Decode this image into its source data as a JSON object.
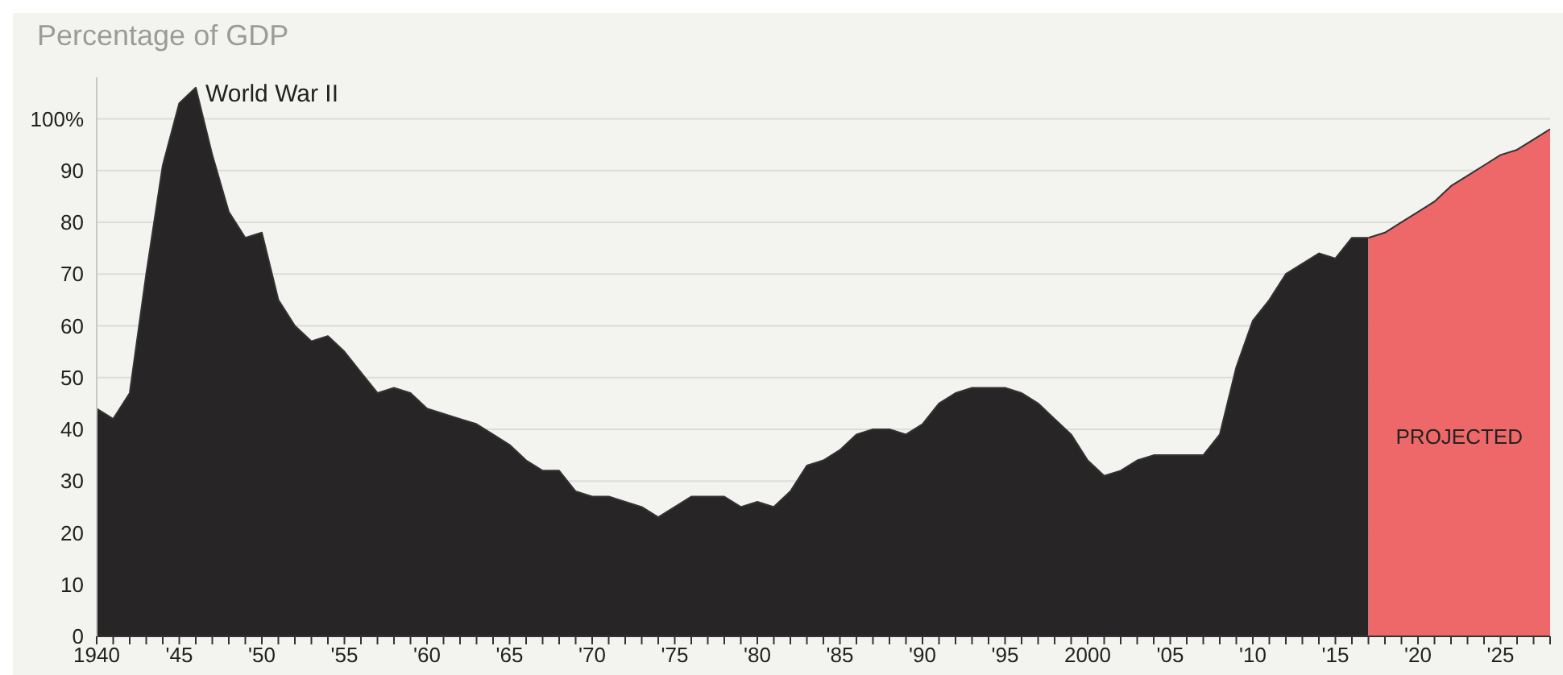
{
  "chart_data": {
    "type": "area",
    "title": "Percentage of GDP",
    "xlim": [
      1940,
      2028
    ],
    "xticks": [
      {
        "value": 1940,
        "label": "1940"
      },
      {
        "value": 1941,
        "label": null
      },
      {
        "value": 1942,
        "label": null
      },
      {
        "value": 1943,
        "label": null
      },
      {
        "value": 1944,
        "label": null
      },
      {
        "value": 1945,
        "label": "'45"
      },
      {
        "value": 1946,
        "label": null
      },
      {
        "value": 1947,
        "label": null
      },
      {
        "value": 1948,
        "label": null
      },
      {
        "value": 1949,
        "label": null
      },
      {
        "value": 1950,
        "label": "'50"
      },
      {
        "value": 1951,
        "label": null
      },
      {
        "value": 1952,
        "label": null
      },
      {
        "value": 1953,
        "label": null
      },
      {
        "value": 1954,
        "label": null
      },
      {
        "value": 1955,
        "label": "'55"
      },
      {
        "value": 1956,
        "label": null
      },
      {
        "value": 1957,
        "label": null
      },
      {
        "value": 1958,
        "label": null
      },
      {
        "value": 1959,
        "label": null
      },
      {
        "value": 1960,
        "label": "'60"
      },
      {
        "value": 1961,
        "label": null
      },
      {
        "value": 1962,
        "label": null
      },
      {
        "value": 1963,
        "label": null
      },
      {
        "value": 1964,
        "label": null
      },
      {
        "value": 1965,
        "label": "'65"
      },
      {
        "value": 1966,
        "label": null
      },
      {
        "value": 1967,
        "label": null
      },
      {
        "value": 1968,
        "label": null
      },
      {
        "value": 1969,
        "label": null
      },
      {
        "value": 1970,
        "label": "'70"
      },
      {
        "value": 1971,
        "label": null
      },
      {
        "value": 1972,
        "label": null
      },
      {
        "value": 1973,
        "label": null
      },
      {
        "value": 1974,
        "label": null
      },
      {
        "value": 1975,
        "label": "'75"
      },
      {
        "value": 1976,
        "label": null
      },
      {
        "value": 1977,
        "label": null
      },
      {
        "value": 1978,
        "label": null
      },
      {
        "value": 1979,
        "label": null
      },
      {
        "value": 1980,
        "label": "'80"
      },
      {
        "value": 1981,
        "label": null
      },
      {
        "value": 1982,
        "label": null
      },
      {
        "value": 1983,
        "label": null
      },
      {
        "value": 1984,
        "label": null
      },
      {
        "value": 1985,
        "label": "'85"
      },
      {
        "value": 1986,
        "label": null
      },
      {
        "value": 1987,
        "label": null
      },
      {
        "value": 1988,
        "label": null
      },
      {
        "value": 1989,
        "label": null
      },
      {
        "value": 1990,
        "label": "'90"
      },
      {
        "value": 1991,
        "label": null
      },
      {
        "value": 1992,
        "label": null
      },
      {
        "value": 1993,
        "label": null
      },
      {
        "value": 1994,
        "label": null
      },
      {
        "value": 1995,
        "label": "'95"
      },
      {
        "value": 1996,
        "label": null
      },
      {
        "value": 1997,
        "label": null
      },
      {
        "value": 1998,
        "label": null
      },
      {
        "value": 1999,
        "label": null
      },
      {
        "value": 2000,
        "label": "2000"
      },
      {
        "value": 2001,
        "label": null
      },
      {
        "value": 2002,
        "label": null
      },
      {
        "value": 2003,
        "label": null
      },
      {
        "value": 2004,
        "label": null
      },
      {
        "value": 2005,
        "label": "'05"
      },
      {
        "value": 2006,
        "label": null
      },
      {
        "value": 2007,
        "label": null
      },
      {
        "value": 2008,
        "label": null
      },
      {
        "value": 2009,
        "label": null
      },
      {
        "value": 2010,
        "label": "'10"
      },
      {
        "value": 2011,
        "label": null
      },
      {
        "value": 2012,
        "label": null
      },
      {
        "value": 2013,
        "label": null
      },
      {
        "value": 2014,
        "label": null
      },
      {
        "value": 2015,
        "label": "'15"
      },
      {
        "value": 2016,
        "label": null
      },
      {
        "value": 2017,
        "label": null
      },
      {
        "value": 2018,
        "label": null
      },
      {
        "value": 2019,
        "label": null
      },
      {
        "value": 2020,
        "label": "'20"
      },
      {
        "value": 2021,
        "label": null
      },
      {
        "value": 2022,
        "label": null
      },
      {
        "value": 2023,
        "label": null
      },
      {
        "value": 2024,
        "label": null
      },
      {
        "value": 2025,
        "label": "'25"
      },
      {
        "value": 2026,
        "label": null
      },
      {
        "value": 2027,
        "label": null
      },
      {
        "value": 2028,
        "label": null
      }
    ],
    "ylim": [
      0,
      108
    ],
    "yticks": [
      0,
      10,
      20,
      30,
      40,
      50,
      60,
      70,
      80,
      90,
      {
        "value": 100,
        "label": "100%"
      }
    ],
    "grid": "y",
    "series": [
      {
        "color": "#282526",
        "x": [
          1940,
          1941,
          1942,
          1943,
          1944,
          1945,
          1946,
          1947,
          1948,
          1949,
          1950,
          1951,
          1952,
          1953,
          1954,
          1955,
          1956,
          1957,
          1958,
          1959,
          1960,
          1961,
          1962,
          1963,
          1964,
          1965,
          1966,
          1967,
          1968,
          1969,
          1970,
          1971,
          1972,
          1973,
          1974,
          1975,
          1976,
          1977,
          1978,
          1979,
          1980,
          1981,
          1982,
          1983,
          1984,
          1985,
          1986,
          1987,
          1988,
          1989,
          1990,
          1991,
          1992,
          1993,
          1994,
          1995,
          1996,
          1997,
          1998,
          1999,
          2000,
          2001,
          2002,
          2003,
          2004,
          2005,
          2006,
          2007,
          2008,
          2009,
          2010,
          2011,
          2012,
          2013,
          2014,
          2015,
          2016,
          2017
        ],
        "values": [
          44,
          42,
          47,
          70,
          91,
          103,
          106,
          93,
          82,
          77,
          78,
          65,
          60,
          57,
          58,
          55,
          51,
          47,
          48,
          47,
          44,
          43,
          42,
          41,
          39,
          37,
          34,
          32,
          32,
          28,
          27,
          27,
          26,
          25,
          23,
          25,
          27,
          27,
          27,
          25,
          26,
          25,
          28,
          33,
          34,
          36,
          39,
          40,
          40,
          39,
          41,
          45,
          47,
          48,
          48,
          48,
          47,
          45,
          42,
          39,
          34,
          31,
          32,
          34,
          35,
          35,
          35,
          35,
          39,
          52,
          61,
          65,
          70,
          72,
          74,
          73,
          77,
          77
        ]
      },
      {
        "name": "PROJECTED",
        "color": "#ef6869",
        "x": [
          2017,
          2018,
          2019,
          2020,
          2021,
          2022,
          2023,
          2024,
          2025,
          2026,
          2027,
          2028
        ],
        "values": [
          77,
          78,
          80,
          82,
          84,
          87,
          89,
          91,
          93,
          94,
          96,
          98
        ]
      }
    ],
    "annotations": [
      {
        "text": "World War II",
        "x": 1946,
        "y": 106
      }
    ]
  }
}
